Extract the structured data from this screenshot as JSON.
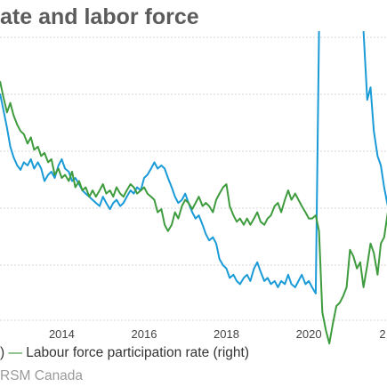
{
  "chart_data": {
    "type": "line",
    "title": "ate and labor force",
    "legend_texts": [
      ") ",
      " Labour force participation rate (right)"
    ],
    "legend_dash": "—",
    "source": "RSM Canada",
    "x_ticks": [
      "2014",
      "2016",
      "2018",
      "2020",
      "2"
    ],
    "x_range": [
      2012.5,
      2021.9
    ],
    "grid": "horizontal",
    "colors": {
      "unemployment": "#1a9bd7",
      "participation": "#3e9b3e"
    },
    "series": [
      {
        "key": "unemployment",
        "axis": "left",
        "y_range": [
          5.0,
          9.5
        ],
        "points": [
          [
            2012.5,
            8.6
          ],
          [
            2012.58,
            8.35
          ],
          [
            2012.67,
            8.05
          ],
          [
            2012.75,
            7.75
          ],
          [
            2012.83,
            7.58
          ],
          [
            2012.92,
            7.45
          ],
          [
            2013.0,
            7.38
          ],
          [
            2013.08,
            7.5
          ],
          [
            2013.17,
            7.45
          ],
          [
            2013.25,
            7.55
          ],
          [
            2013.33,
            7.4
          ],
          [
            2013.42,
            7.5
          ],
          [
            2013.5,
            7.4
          ],
          [
            2013.58,
            7.2
          ],
          [
            2013.67,
            7.3
          ],
          [
            2013.75,
            7.35
          ],
          [
            2013.83,
            7.25
          ],
          [
            2013.92,
            7.45
          ],
          [
            2014.0,
            7.55
          ],
          [
            2014.08,
            7.4
          ],
          [
            2014.17,
            7.35
          ],
          [
            2014.25,
            7.2
          ],
          [
            2014.33,
            7.25
          ],
          [
            2014.42,
            7.15
          ],
          [
            2014.5,
            7.05
          ],
          [
            2014.58,
            7.0
          ],
          [
            2014.67,
            6.95
          ],
          [
            2014.75,
            6.9
          ],
          [
            2014.83,
            6.85
          ],
          [
            2014.92,
            6.8
          ],
          [
            2015.0,
            6.95
          ],
          [
            2015.08,
            6.85
          ],
          [
            2015.17,
            6.75
          ],
          [
            2015.25,
            6.85
          ],
          [
            2015.33,
            6.9
          ],
          [
            2015.42,
            6.8
          ],
          [
            2015.5,
            6.85
          ],
          [
            2015.58,
            6.95
          ],
          [
            2015.67,
            7.05
          ],
          [
            2015.75,
            7.0
          ],
          [
            2015.83,
            7.1
          ],
          [
            2015.92,
            7.05
          ],
          [
            2016.0,
            7.25
          ],
          [
            2016.08,
            7.3
          ],
          [
            2016.17,
            7.4
          ],
          [
            2016.25,
            7.5
          ],
          [
            2016.33,
            7.4
          ],
          [
            2016.42,
            7.45
          ],
          [
            2016.5,
            7.4
          ],
          [
            2016.58,
            7.25
          ],
          [
            2016.67,
            7.1
          ],
          [
            2016.75,
            6.95
          ],
          [
            2016.83,
            6.85
          ],
          [
            2016.92,
            6.9
          ],
          [
            2017.0,
            7.0
          ],
          [
            2017.08,
            6.85
          ],
          [
            2017.17,
            6.7
          ],
          [
            2017.25,
            6.6
          ],
          [
            2017.33,
            6.65
          ],
          [
            2017.42,
            6.5
          ],
          [
            2017.5,
            6.35
          ],
          [
            2017.58,
            6.25
          ],
          [
            2017.67,
            6.3
          ],
          [
            2017.75,
            6.2
          ],
          [
            2017.83,
            5.95
          ],
          [
            2017.92,
            5.85
          ],
          [
            2018.0,
            5.8
          ],
          [
            2018.08,
            5.65
          ],
          [
            2018.17,
            5.7
          ],
          [
            2018.25,
            5.6
          ],
          [
            2018.33,
            5.55
          ],
          [
            2018.42,
            5.65
          ],
          [
            2018.5,
            5.7
          ],
          [
            2018.58,
            5.6
          ],
          [
            2018.67,
            5.8
          ],
          [
            2018.75,
            5.9
          ],
          [
            2018.83,
            5.75
          ],
          [
            2018.92,
            5.6
          ],
          [
            2019.0,
            5.65
          ],
          [
            2019.08,
            5.55
          ],
          [
            2019.17,
            5.6
          ],
          [
            2019.25,
            5.5
          ],
          [
            2019.33,
            5.6
          ],
          [
            2019.42,
            5.55
          ],
          [
            2019.5,
            5.7
          ],
          [
            2019.58,
            5.55
          ],
          [
            2019.67,
            5.5
          ],
          [
            2019.75,
            5.6
          ],
          [
            2019.83,
            5.7
          ],
          [
            2019.92,
            5.55
          ],
          [
            2020.0,
            5.6
          ],
          [
            2020.08,
            5.5
          ],
          [
            2020.17,
            5.4
          ],
          [
            2020.25,
            9.6
          ]
        ]
      },
      {
        "key": "unemployment",
        "axis": "left",
        "y_range": [
          5.0,
          9.5
        ],
        "points": [
          [
            2021.33,
            9.6
          ],
          [
            2021.42,
            8.5
          ],
          [
            2021.5,
            8.7
          ],
          [
            2021.58,
            8.0
          ],
          [
            2021.67,
            7.6
          ],
          [
            2021.75,
            7.45
          ],
          [
            2021.83,
            7.1
          ],
          [
            2021.92,
            6.8
          ]
        ]
      },
      {
        "key": "participation",
        "axis": "right",
        "y_range": [
          63.0,
          67.5
        ],
        "points": [
          [
            2012.5,
            66.8
          ],
          [
            2012.58,
            66.55
          ],
          [
            2012.67,
            66.3
          ],
          [
            2012.75,
            66.45
          ],
          [
            2012.83,
            66.25
          ],
          [
            2012.92,
            66.1
          ],
          [
            2013.0,
            66.0
          ],
          [
            2013.08,
            65.95
          ],
          [
            2013.17,
            65.8
          ],
          [
            2013.25,
            65.9
          ],
          [
            2013.33,
            65.7
          ],
          [
            2013.42,
            65.75
          ],
          [
            2013.5,
            65.6
          ],
          [
            2013.58,
            65.65
          ],
          [
            2013.67,
            65.5
          ],
          [
            2013.75,
            65.55
          ],
          [
            2013.83,
            65.3
          ],
          [
            2013.92,
            65.4
          ],
          [
            2014.0,
            65.25
          ],
          [
            2014.08,
            65.3
          ],
          [
            2014.17,
            65.2
          ],
          [
            2014.25,
            65.35
          ],
          [
            2014.33,
            65.1
          ],
          [
            2014.42,
            65.2
          ],
          [
            2014.5,
            65.05
          ],
          [
            2014.58,
            65.1
          ],
          [
            2014.67,
            64.95
          ],
          [
            2014.75,
            65.05
          ],
          [
            2014.83,
            64.95
          ],
          [
            2014.92,
            65.05
          ],
          [
            2015.0,
            65.15
          ],
          [
            2015.08,
            65.0
          ],
          [
            2015.17,
            65.05
          ],
          [
            2015.25,
            64.95
          ],
          [
            2015.33,
            65.1
          ],
          [
            2015.42,
            65.0
          ],
          [
            2015.5,
            64.95
          ],
          [
            2015.58,
            65.05
          ],
          [
            2015.67,
            65.15
          ],
          [
            2015.75,
            65.1
          ],
          [
            2015.83,
            65.0
          ],
          [
            2015.92,
            65.05
          ],
          [
            2016.0,
            65.1
          ],
          [
            2016.08,
            65.0
          ],
          [
            2016.17,
            64.95
          ],
          [
            2016.25,
            64.9
          ],
          [
            2016.33,
            64.7
          ],
          [
            2016.42,
            64.75
          ],
          [
            2016.5,
            64.5
          ],
          [
            2016.58,
            64.4
          ],
          [
            2016.67,
            64.5
          ],
          [
            2016.75,
            64.7
          ],
          [
            2016.83,
            64.6
          ],
          [
            2016.92,
            64.8
          ],
          [
            2017.0,
            64.9
          ],
          [
            2017.08,
            64.85
          ],
          [
            2017.17,
            64.75
          ],
          [
            2017.25,
            64.85
          ],
          [
            2017.33,
            64.95
          ],
          [
            2017.42,
            64.8
          ],
          [
            2017.5,
            64.85
          ],
          [
            2017.58,
            64.8
          ],
          [
            2017.67,
            64.7
          ],
          [
            2017.75,
            64.9
          ],
          [
            2017.83,
            65.0
          ],
          [
            2017.92,
            65.1
          ],
          [
            2018.0,
            65.15
          ],
          [
            2018.08,
            64.8
          ],
          [
            2018.17,
            64.65
          ],
          [
            2018.25,
            64.55
          ],
          [
            2018.33,
            64.6
          ],
          [
            2018.42,
            64.5
          ],
          [
            2018.5,
            64.6
          ],
          [
            2018.58,
            64.5
          ],
          [
            2018.67,
            64.6
          ],
          [
            2018.75,
            64.7
          ],
          [
            2018.83,
            64.55
          ],
          [
            2018.92,
            64.5
          ],
          [
            2019.0,
            64.6
          ],
          [
            2019.08,
            64.65
          ],
          [
            2019.17,
            64.8
          ],
          [
            2019.25,
            64.85
          ],
          [
            2019.33,
            64.7
          ],
          [
            2019.42,
            64.9
          ],
          [
            2019.5,
            65.05
          ],
          [
            2019.58,
            64.9
          ],
          [
            2019.67,
            65.0
          ],
          [
            2019.75,
            64.9
          ],
          [
            2019.83,
            64.8
          ],
          [
            2019.92,
            64.7
          ],
          [
            2020.0,
            64.6
          ],
          [
            2020.08,
            64.6
          ],
          [
            2020.17,
            64.65
          ],
          [
            2020.25,
            64.4
          ],
          [
            2020.33,
            63.1
          ],
          [
            2020.42,
            62.8
          ],
          [
            2020.5,
            62.6
          ],
          [
            2020.58,
            62.9
          ],
          [
            2020.67,
            63.2
          ],
          [
            2020.75,
            63.25
          ],
          [
            2020.83,
            63.35
          ],
          [
            2020.92,
            63.5
          ],
          [
            2021.0,
            64.1
          ],
          [
            2021.08,
            64.0
          ],
          [
            2021.17,
            63.8
          ],
          [
            2021.25,
            63.9
          ],
          [
            2021.33,
            63.5
          ],
          [
            2021.42,
            63.85
          ],
          [
            2021.5,
            64.2
          ],
          [
            2021.58,
            64.05
          ],
          [
            2021.67,
            63.7
          ],
          [
            2021.75,
            64.2
          ],
          [
            2021.83,
            64.3
          ],
          [
            2021.92,
            64.7
          ]
        ]
      }
    ]
  }
}
